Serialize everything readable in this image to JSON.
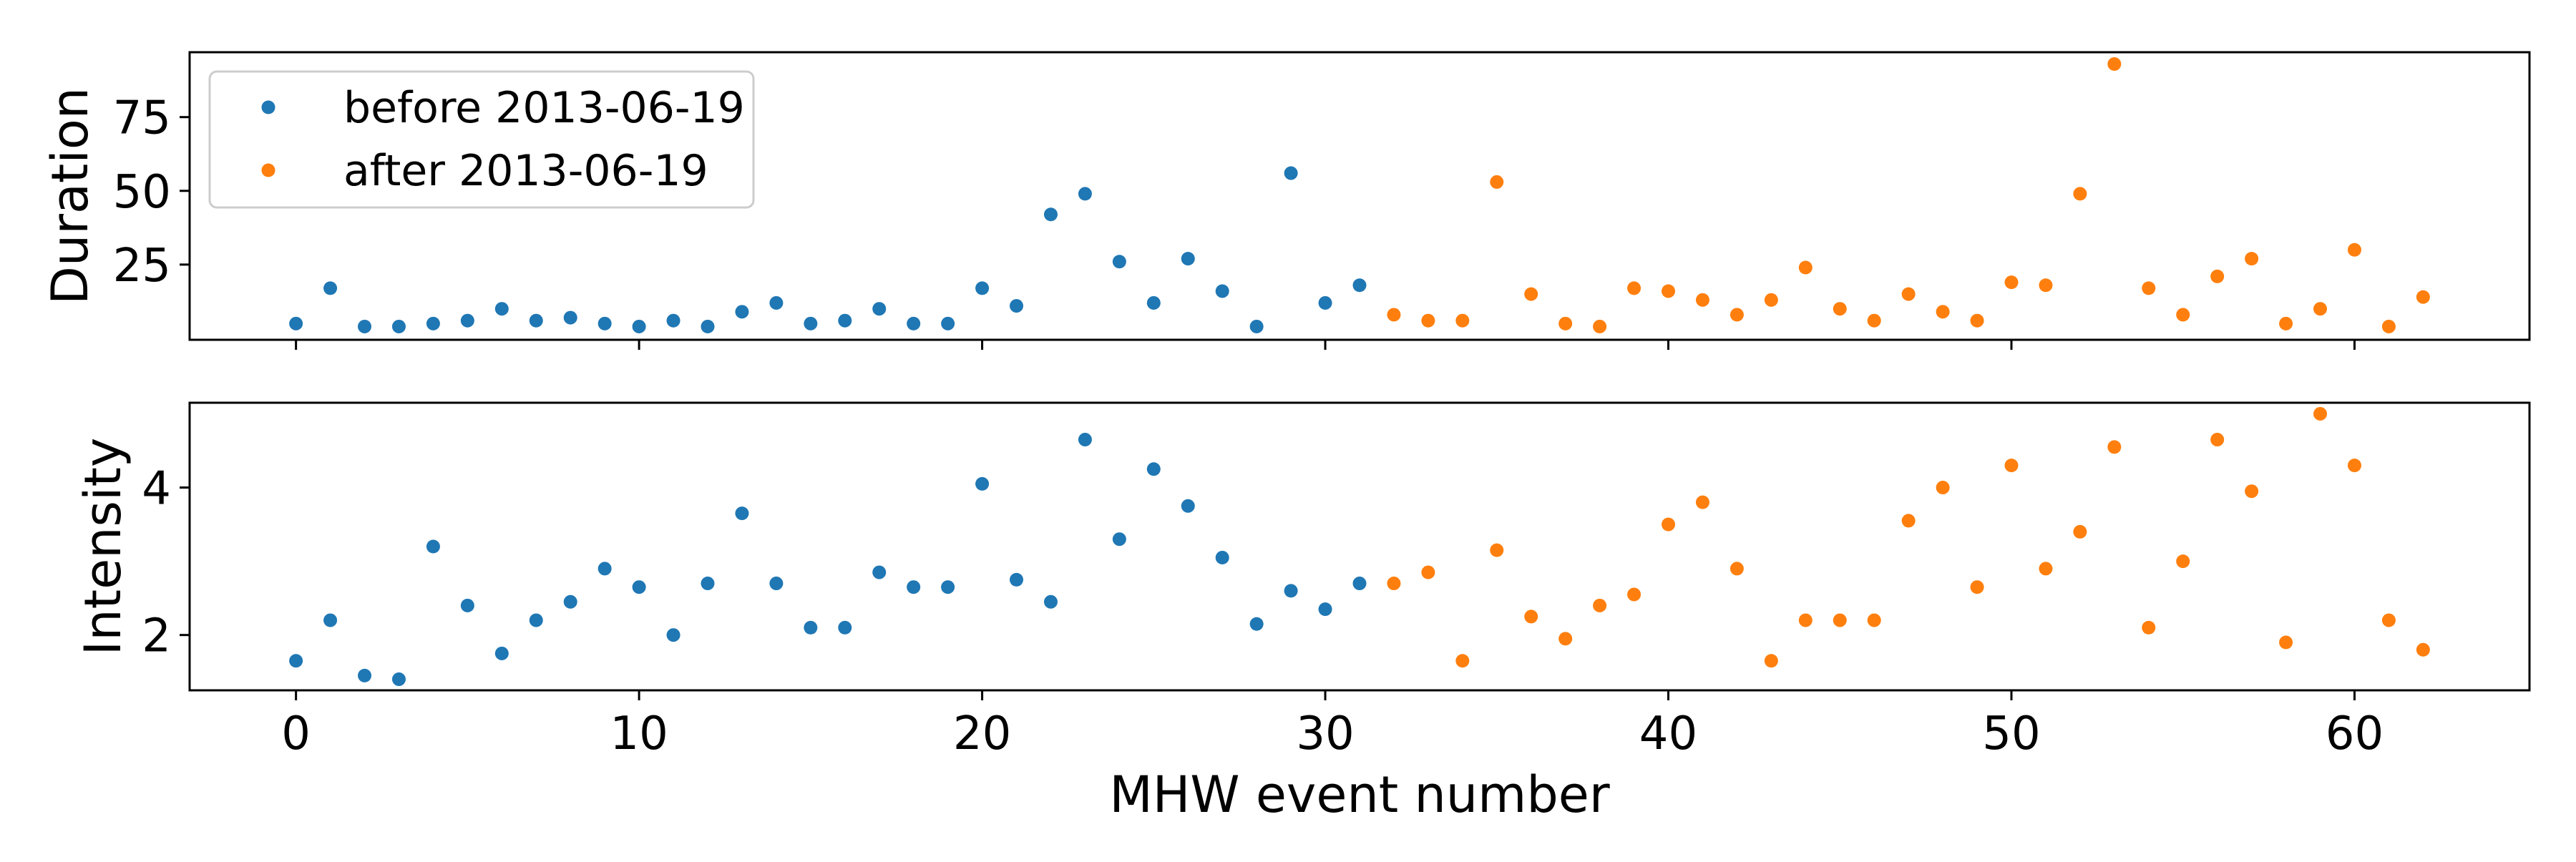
{
  "colors": {
    "before": "#1f77b4",
    "after": "#ff7f0e",
    "axes": "#000000",
    "background": "#ffffff"
  },
  "chart_data": [
    {
      "type": "scatter",
      "panel": "top",
      "title": "",
      "xlabel": "",
      "ylabel": "Duration",
      "xlim": [
        -3.1,
        65.1
      ],
      "ylim": [
        -0.5,
        97.0
      ],
      "yticks": [
        25,
        50,
        75
      ],
      "xticks": [
        0,
        10,
        20,
        30,
        40,
        50,
        60
      ],
      "x_tick_labels_visible": false,
      "grid": false,
      "legend": {
        "position": "top-left",
        "entries": [
          "before 2013-06-19",
          "after 2013-06-19"
        ]
      },
      "series": [
        {
          "name": "before 2013-06-19",
          "color": "#1f77b4",
          "x": [
            0,
            1,
            2,
            3,
            4,
            5,
            6,
            7,
            8,
            9,
            10,
            11,
            12,
            13,
            14,
            15,
            16,
            17,
            18,
            19,
            20,
            21,
            22,
            23,
            24,
            25,
            26,
            27,
            28,
            29,
            30,
            31
          ],
          "y": [
            5,
            17,
            4,
            4,
            5,
            6,
            10,
            6,
            7,
            5,
            4,
            6,
            4,
            9,
            12,
            5,
            6,
            10,
            5,
            5,
            17,
            11,
            42,
            49,
            26,
            12,
            27,
            16,
            4,
            56,
            12,
            18
          ]
        },
        {
          "name": "after 2013-06-19",
          "color": "#ff7f0e",
          "x": [
            32,
            33,
            34,
            35,
            36,
            37,
            38,
            39,
            40,
            41,
            42,
            43,
            44,
            45,
            46,
            47,
            48,
            49,
            50,
            51,
            52,
            53,
            54,
            55,
            56,
            57,
            58,
            59,
            60,
            61,
            62
          ],
          "y": [
            8,
            6,
            6,
            53,
            15,
            5,
            4,
            17,
            16,
            13,
            8,
            13,
            24,
            10,
            6,
            15,
            9,
            6,
            19,
            18,
            49,
            93,
            17,
            8,
            21,
            27,
            5,
            10,
            30,
            4,
            14
          ]
        }
      ]
    },
    {
      "type": "scatter",
      "panel": "bottom",
      "title": "",
      "xlabel": "MHW event number",
      "ylabel": "Intensity",
      "xlim": [
        -3.1,
        65.1
      ],
      "ylim": [
        1.25,
        5.15
      ],
      "yticks": [
        2,
        4
      ],
      "xticks": [
        0,
        10,
        20,
        30,
        40,
        50,
        60
      ],
      "x_tick_labels_visible": true,
      "grid": false,
      "series": [
        {
          "name": "before 2013-06-19",
          "color": "#1f77b4",
          "x": [
            0,
            1,
            2,
            3,
            4,
            5,
            6,
            7,
            8,
            9,
            10,
            11,
            12,
            13,
            14,
            15,
            16,
            17,
            18,
            19,
            20,
            21,
            22,
            23,
            24,
            25,
            26,
            27,
            28,
            29,
            30,
            31
          ],
          "y": [
            1.65,
            2.2,
            1.45,
            1.4,
            3.2,
            2.4,
            1.75,
            2.2,
            2.45,
            2.9,
            2.65,
            2.0,
            2.7,
            3.65,
            2.7,
            2.1,
            2.1,
            2.85,
            2.65,
            2.65,
            4.05,
            2.75,
            2.45,
            4.65,
            3.3,
            4.25,
            3.75,
            3.05,
            2.15,
            2.6,
            2.35,
            2.7
          ]
        },
        {
          "name": "after 2013-06-19",
          "color": "#ff7f0e",
          "x": [
            32,
            33,
            34,
            35,
            36,
            37,
            38,
            39,
            40,
            41,
            42,
            43,
            44,
            45,
            46,
            47,
            48,
            49,
            50,
            51,
            52,
            53,
            54,
            55,
            56,
            57,
            58,
            59,
            60,
            61,
            62
          ],
          "y": [
            2.7,
            2.85,
            1.65,
            3.15,
            2.25,
            1.95,
            2.4,
            2.55,
            3.5,
            3.8,
            2.9,
            1.65,
            2.2,
            2.2,
            2.2,
            3.55,
            4.0,
            2.65,
            4.3,
            2.9,
            3.4,
            4.55,
            2.1,
            3.0,
            4.65,
            3.95,
            1.9,
            5.0,
            4.3,
            2.2,
            1.8
          ]
        }
      ]
    }
  ]
}
